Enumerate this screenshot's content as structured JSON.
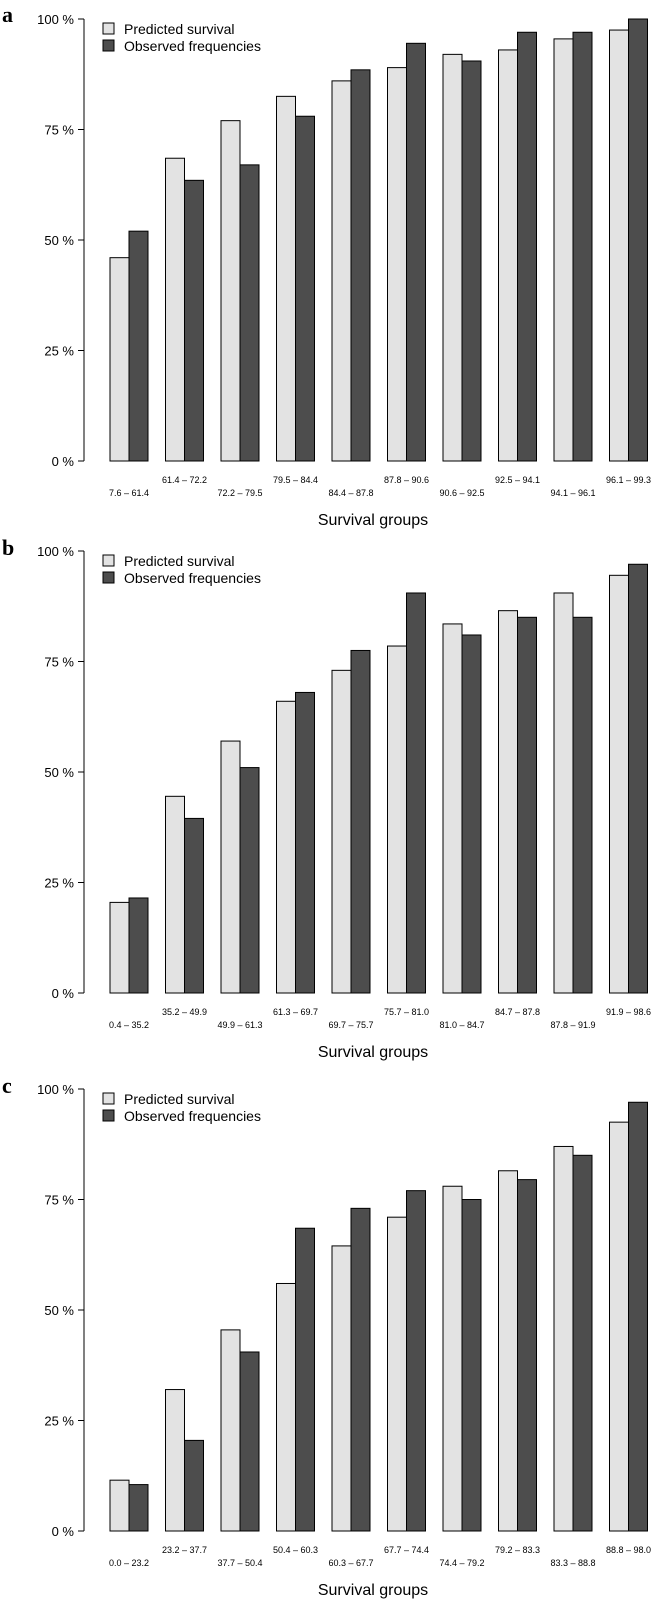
{
  "colors": {
    "predicted": "#e3e3e3",
    "observed": "#4d4d4d",
    "axis": "#000000"
  },
  "chart_data": [
    {
      "type": "bar",
      "panel_label": "a",
      "xlabel": "Survival groups",
      "ylabel": "",
      "ylim": [
        0,
        100
      ],
      "yticks": [
        0,
        25,
        50,
        75,
        100
      ],
      "ytick_labels": [
        "0 %",
        "25 %",
        "50 %",
        "75 %",
        "100 %"
      ],
      "legend_placement": "top-left",
      "categories": [
        "7.6 – 61.4",
        "61.4 – 72.2",
        "72.2 – 79.5",
        "79.5 – 84.4",
        "84.4 – 87.8",
        "87.8 – 90.6",
        "90.6 – 92.5",
        "92.5 – 94.1",
        "94.1 – 96.1",
        "96.1 – 99.3"
      ],
      "series": [
        {
          "name": "Predicted survival",
          "values": [
            46,
            68.5,
            77,
            82.5,
            86,
            89,
            92,
            93,
            95.5,
            97.5
          ]
        },
        {
          "name": "Observed frequencies",
          "values": [
            52,
            63.5,
            67,
            78,
            88.5,
            94.5,
            90.5,
            97,
            97,
            100
          ]
        }
      ]
    },
    {
      "type": "bar",
      "panel_label": "b",
      "xlabel": "Survival groups",
      "ylabel": "",
      "ylim": [
        0,
        100
      ],
      "yticks": [
        0,
        25,
        50,
        75,
        100
      ],
      "ytick_labels": [
        "0 %",
        "25 %",
        "50 %",
        "75 %",
        "100 %"
      ],
      "legend_placement": "top-left",
      "categories": [
        "0.4 – 35.2",
        "35.2 – 49.9",
        "49.9 – 61.3",
        "61.3 – 69.7",
        "69.7 – 75.7",
        "75.7 – 81.0",
        "81.0 – 84.7",
        "84.7 – 87.8",
        "87.8 – 91.9",
        "91.9 – 98.6"
      ],
      "series": [
        {
          "name": "Predicted survival",
          "values": [
            20.5,
            44.5,
            57,
            66,
            73,
            78.5,
            83.5,
            86.5,
            90.5,
            94.5
          ]
        },
        {
          "name": "Observed frequencies",
          "values": [
            21.5,
            39.5,
            51,
            68,
            77.5,
            90.5,
            81,
            85,
            85,
            97
          ]
        }
      ]
    },
    {
      "type": "bar",
      "panel_label": "c",
      "xlabel": "Survival groups",
      "ylabel": "",
      "ylim": [
        0,
        100
      ],
      "yticks": [
        0,
        25,
        50,
        75,
        100
      ],
      "ytick_labels": [
        "0 %",
        "25 %",
        "50 %",
        "75 %",
        "100 %"
      ],
      "legend_placement": "top-left",
      "categories": [
        "0.0 – 23.2",
        "23.2 – 37.7",
        "37.7 – 50.4",
        "50.4 – 60.3",
        "60.3 – 67.7",
        "67.7 – 74.4",
        "74.4 – 79.2",
        "79.2 – 83.3",
        "83.3 – 88.8",
        "88.8 – 98.0"
      ],
      "series": [
        {
          "name": "Predicted survival",
          "values": [
            11.5,
            32,
            45.5,
            56,
            64.5,
            71,
            78,
            81.5,
            87,
            92.5
          ]
        },
        {
          "name": "Observed frequencies",
          "values": [
            10.5,
            20.5,
            40.5,
            68.5,
            73,
            77,
            75,
            79.5,
            85,
            97
          ]
        }
      ]
    }
  ]
}
